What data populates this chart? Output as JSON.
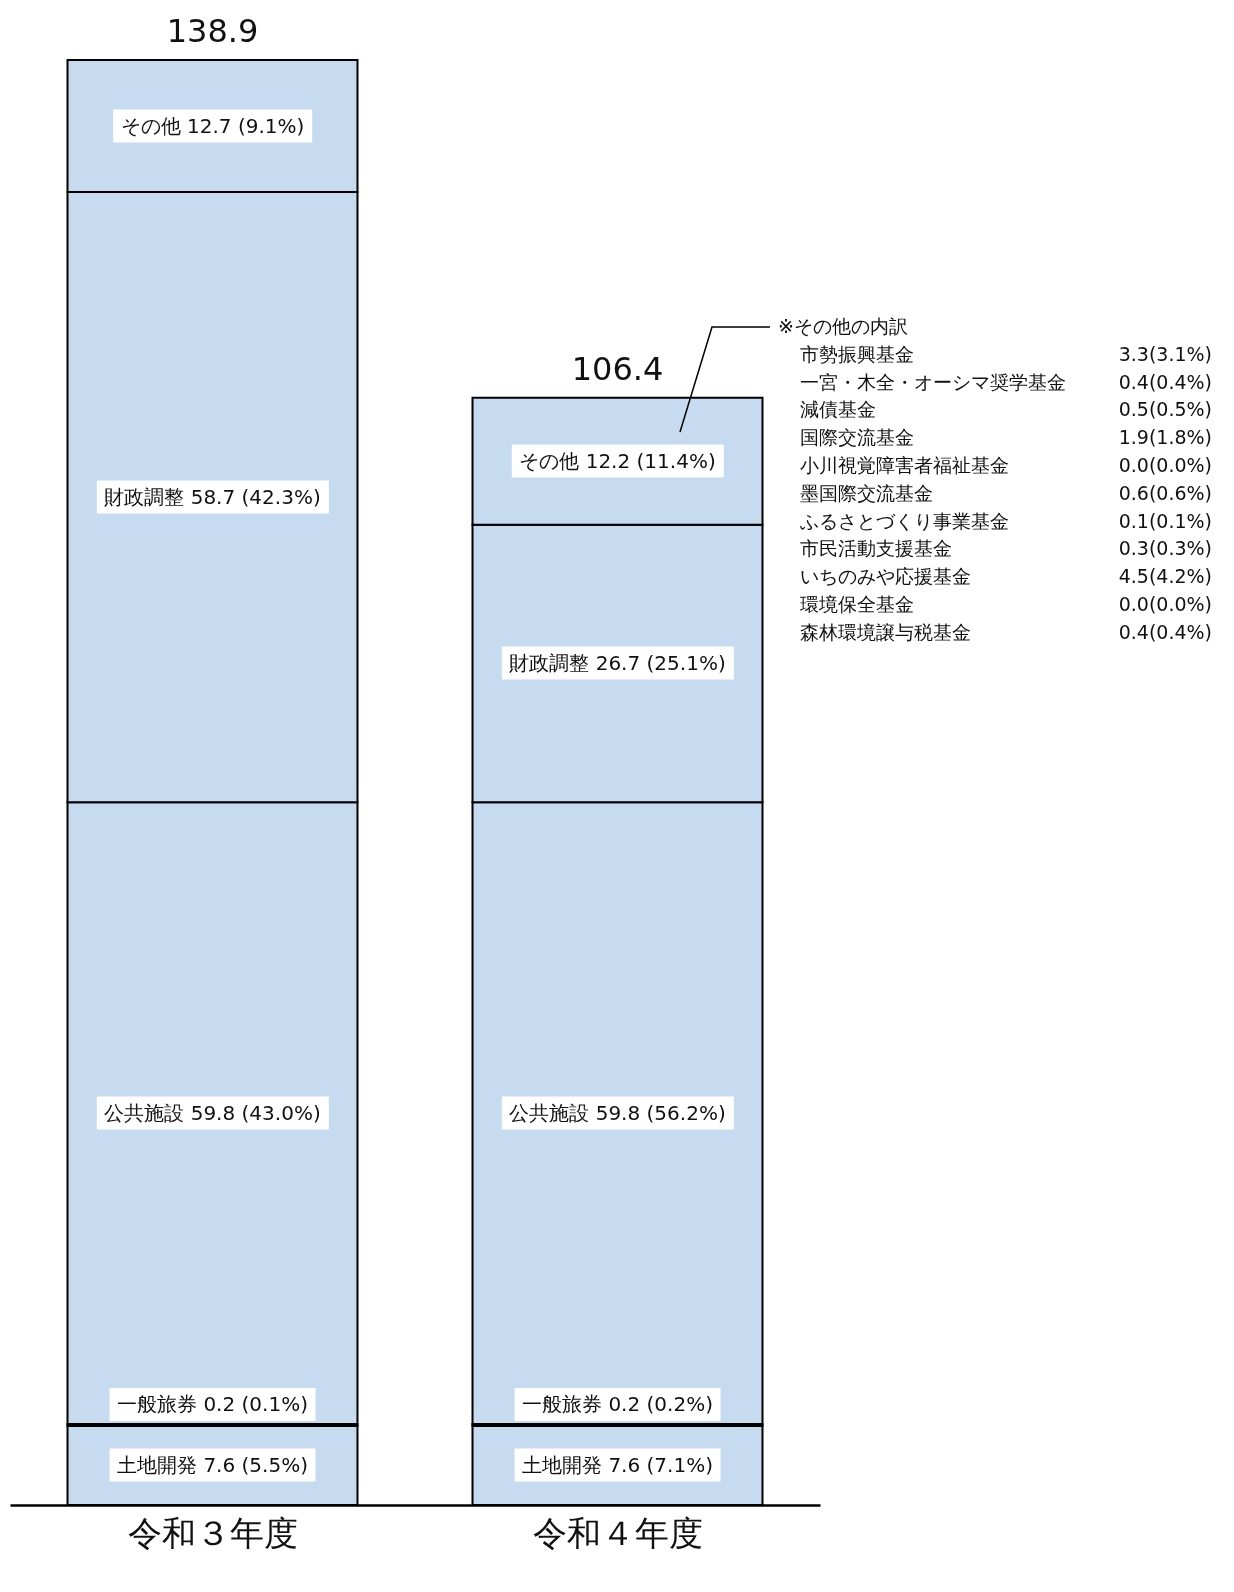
{
  "chart_data": {
    "type": "bar",
    "stacked": true,
    "categories": [
      "令和３年度",
      "令和４年度"
    ],
    "series": [
      {
        "name": "土地開発",
        "color": "#c6dbf0",
        "values": [
          7.6,
          7.6
        ],
        "value_labels": [
          "7.6 (5.5%)",
          "7.6 (7.1%)"
        ]
      },
      {
        "name": "一般旅券",
        "color": "#c6dbf0",
        "values": [
          0.2,
          0.2
        ],
        "value_labels": [
          "0.2 (0.1%)",
          "0.2 (0.2%)"
        ]
      },
      {
        "name": "公共施設",
        "color": "#c6dbf0",
        "values": [
          59.8,
          59.8
        ],
        "value_labels": [
          "59.8 (43.0%)",
          "59.8 (56.2%)"
        ]
      },
      {
        "name": "財政調整",
        "color": "#c6dbf0",
        "values": [
          58.7,
          26.7
        ],
        "value_labels": [
          "58.7 (42.3%)",
          "26.7 (25.1%)"
        ]
      },
      {
        "name": "その他",
        "color": "#c6dbf0",
        "values": [
          12.7,
          12.2
        ],
        "value_labels": [
          "12.7 (9.1%)",
          "12.2 (11.4%)"
        ]
      }
    ],
    "totals": [
      "138.9",
      "106.4"
    ],
    "annotations": [
      "※その他の内訳",
      "市勢振興基金 3.3(3.1%)",
      "一宮・木全・オーシマ奨学基金 0.4(0.4%)",
      "減債基金 0.5(0.5%)",
      "国際交流基金 1.9(1.8%)",
      "小川視覚障害者福祉基金 0.0(0.0%)",
      "墨国際交流基金 0.6(0.6%)",
      "ふるさとづくり事業基金 0.1(0.1%)",
      "市民活動支援基金 0.3(0.3%)",
      "いちのみや応援基金 4.5(4.2%)",
      "環境保全基金 0.0(0.0%)",
      "森林環境譲与税基金 0.4(0.4%)"
    ],
    "legend": false
  }
}
